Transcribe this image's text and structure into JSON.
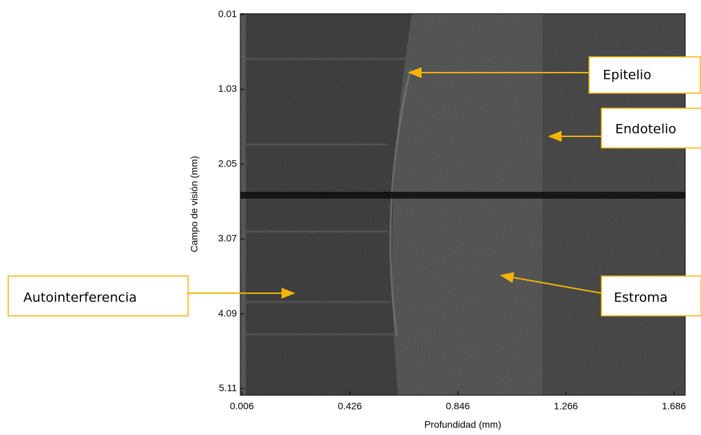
{
  "chart_data": {
    "type": "image",
    "xlabel": "Profundidad (mm)",
    "ylabel": "Campo de visión (mm)",
    "xlim": [
      0,
      1.73
    ],
    "ylim": [
      0,
      5.2
    ],
    "xticks": [
      0.006,
      0.426,
      0.846,
      1.266,
      1.686
    ],
    "yticks": [
      0.01,
      1.03,
      2.05,
      3.07,
      4.09,
      5.11
    ],
    "annotations": [
      "Epitelio",
      "Endotelio",
      "Estroma",
      "Autointerferencia"
    ]
  }
}
